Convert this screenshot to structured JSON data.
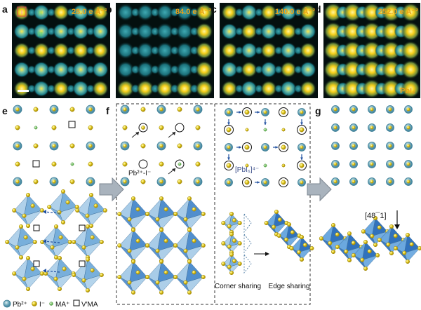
{
  "figure": {
    "panel_labels": [
      "a",
      "b",
      "c",
      "d",
      "e",
      "f",
      "g"
    ],
    "doses": [
      "28.0 e Å⁻²",
      "84.0 e Å⁻²",
      "140.0 e Å⁻²",
      "252.0 e Å⁻²"
    ],
    "site_labels": [
      "I",
      "II",
      "III"
    ],
    "pbi2_label": "PbI₂",
    "defect_label": "Pb²⁺-I⁻",
    "pbi6_label": "[PbI₆]⁴⁻",
    "corner_sharing": "Corner sharing",
    "edge_sharing": "Edge sharing",
    "direction_label": "[48¯1]",
    "legend": {
      "pb": "Pb²⁺",
      "i": "I⁻",
      "ma": "MA⁺",
      "vma": "V′MA"
    },
    "colors": {
      "tem_background": "#04100f",
      "atom_teal": "#2e9aa3",
      "atom_yellow": "#f2d21a",
      "dose_text": "#e8a21a",
      "octahedron_light": "#8fbfe0",
      "octahedron_dark": "#1b63b5",
      "arrow_fill": "#a9b3bd"
    }
  }
}
